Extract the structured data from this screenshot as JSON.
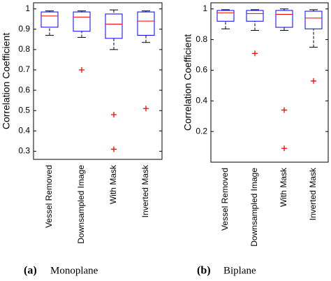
{
  "chart_data": [
    {
      "type": "box",
      "ylabel": "Correlation Coefficient",
      "caption_label": "(a)",
      "caption": "Monoplane",
      "categories": [
        "Vessel Removed",
        "Downsampled Image",
        "With Mask",
        "Inverted Mask"
      ],
      "box_color": "#0000ff",
      "median_color": "#ff0000",
      "flier_color": "#ff0000",
      "ylim": [
        0.26,
        1.03
      ],
      "yticks": [
        0.3,
        0.4,
        0.5,
        0.6,
        0.7,
        0.8,
        0.9,
        1
      ],
      "boxes": [
        {
          "whislo": 0.87,
          "q1": 0.91,
          "med": 0.965,
          "q3": 0.985,
          "whishi": 0.99,
          "fliers": []
        },
        {
          "whislo": 0.86,
          "q1": 0.89,
          "med": 0.96,
          "q3": 0.985,
          "whishi": 0.99,
          "fliers": [
            0.7
          ]
        },
        {
          "whislo": 0.8,
          "q1": 0.855,
          "med": 0.925,
          "q3": 0.975,
          "whishi": 0.995,
          "fliers": [
            0.48,
            0.31
          ]
        },
        {
          "whislo": 0.835,
          "q1": 0.87,
          "med": 0.94,
          "q3": 0.985,
          "whishi": 0.99,
          "fliers": [
            0.51
          ]
        }
      ]
    },
    {
      "type": "box",
      "ylabel": "Correlation Coefficient",
      "caption_label": "(b)",
      "caption": "Biplane",
      "categories": [
        "Vessel Removed",
        "Downsampled Image",
        "With Mask",
        "Inverted Mask"
      ],
      "box_color": "#0000ff",
      "median_color": "#ff0000",
      "flier_color": "#ff0000",
      "ylim": [
        0,
        1.04
      ],
      "yticks": [
        0.2,
        0.4,
        0.6,
        0.8,
        1
      ],
      "boxes": [
        {
          "whislo": 0.87,
          "q1": 0.92,
          "med": 0.975,
          "q3": 0.99,
          "whishi": 0.995,
          "fliers": []
        },
        {
          "whislo": 0.86,
          "q1": 0.92,
          "med": 0.97,
          "q3": 0.99,
          "whishi": 0.995,
          "fliers": [
            0.71
          ]
        },
        {
          "whislo": 0.86,
          "q1": 0.88,
          "med": 0.965,
          "q3": 0.99,
          "whishi": 1.0,
          "fliers": [
            0.34,
            0.09
          ]
        },
        {
          "whislo": 0.75,
          "q1": 0.87,
          "med": 0.94,
          "q3": 0.985,
          "whishi": 0.995,
          "fliers": [
            0.53
          ]
        }
      ]
    }
  ]
}
